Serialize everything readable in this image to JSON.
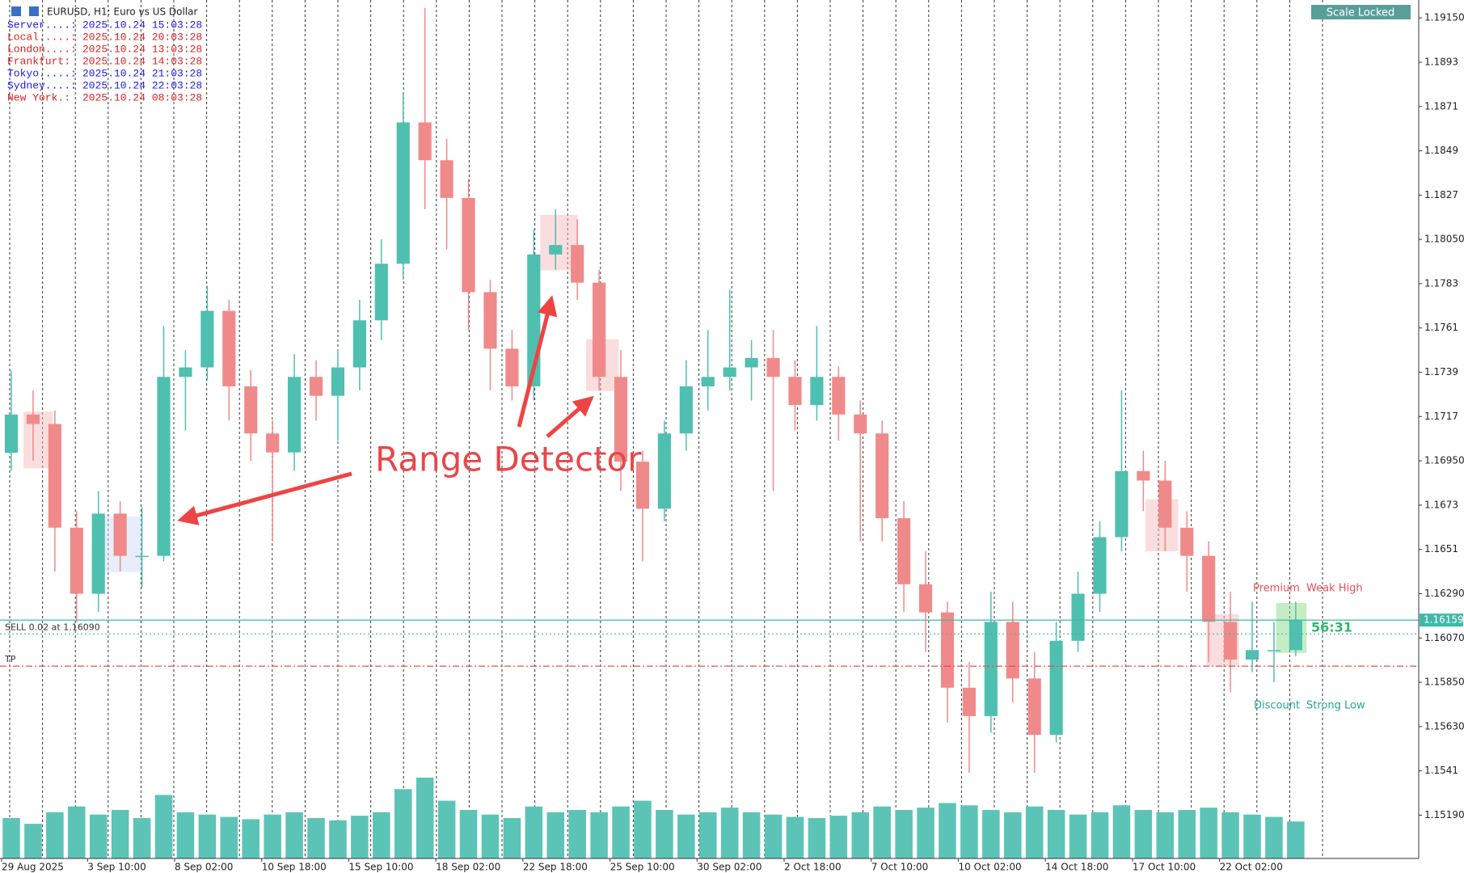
{
  "chart_data": {
    "type": "candlestick",
    "title": "EURUSD, H1: Euro vs US Dollar",
    "up_color": "#4fbfb0",
    "down_color": "#f08a8a",
    "open": [
      1.1699,
      1.1718,
      1.17133,
      1.16618,
      1.1629,
      1.16688,
      1.16478,
      1.16478,
      1.17367,
      1.17414,
      1.17695,
      1.1732,
      1.17086,
      1.16992,
      1.17367,
      1.17273,
      1.17414,
      1.17648,
      1.17929,
      1.18631,
      1.18443,
      1.18256,
      1.17788,
      1.17507,
      1.1732,
      1.17975,
      1.18022,
      1.17835,
      1.17367,
      1.16946,
      1.16712,
      1.17086,
      1.1732,
      1.17367,
      1.17414,
      1.17461,
      1.17367,
      1.17227,
      1.17367,
      1.1718,
      1.17086,
      1.16665,
      1.16337,
      1.16197,
      1.15823,
      1.15682,
      1.1615,
      1.15869,
      1.15589,
      1.16056,
      1.1629,
      1.16571,
      1.16899,
      1.16852,
      1.16618,
      1.16478,
      1.1615,
      1.15963,
      1.1601,
      1.1601
    ],
    "high": [
      1.174,
      1.173,
      1.172,
      1.167,
      1.168,
      1.1675,
      1.1672,
      1.1762,
      1.175,
      1.1782,
      1.1775,
      1.174,
      1.1715,
      1.1748,
      1.1745,
      1.175,
      1.1775,
      1.1805,
      1.1878,
      1.192,
      1.1855,
      1.1835,
      1.1785,
      1.176,
      1.181,
      1.182,
      1.1815,
      1.179,
      1.175,
      1.17,
      1.1715,
      1.1745,
      1.176,
      1.178,
      1.1755,
      1.176,
      1.1745,
      1.1762,
      1.1742,
      1.1725,
      1.1715,
      1.1675,
      1.165,
      1.1625,
      1.1595,
      1.163,
      1.1625,
      1.16,
      1.1615,
      1.164,
      1.1665,
      1.173,
      1.17,
      1.1695,
      1.167,
      1.1655,
      1.163,
      1.1625,
      1.1615,
      1.1625
    ],
    "low": [
      1.169,
      1.1695,
      1.164,
      1.1615,
      1.162,
      1.164,
      1.1632,
      1.1645,
      1.171,
      1.1735,
      1.1715,
      1.1695,
      1.1655,
      1.169,
      1.1715,
      1.1705,
      1.173,
      1.1755,
      1.1785,
      1.182,
      1.18,
      1.176,
      1.173,
      1.1725,
      1.1725,
      1.179,
      1.1775,
      1.173,
      1.168,
      1.1645,
      1.1665,
      1.17,
      1.172,
      1.173,
      1.1725,
      1.168,
      1.171,
      1.1715,
      1.1705,
      1.1655,
      1.1655,
      1.162,
      1.16,
      1.1565,
      1.154,
      1.156,
      1.1575,
      1.154,
      1.1555,
      1.16,
      1.162,
      1.165,
      1.167,
      1.165,
      1.163,
      1.1595,
      1.158,
      1.159,
      1.1585,
      1.1598
    ],
    "close": [
      1.1718,
      1.17133,
      1.16618,
      1.1629,
      1.16688,
      1.16478,
      1.16478,
      1.17367,
      1.17414,
      1.17695,
      1.1732,
      1.17086,
      1.16992,
      1.17367,
      1.17273,
      1.17414,
      1.17648,
      1.17929,
      1.18631,
      1.18443,
      1.18256,
      1.17788,
      1.17507,
      1.1732,
      1.17975,
      1.18022,
      1.17835,
      1.17367,
      1.16946,
      1.16712,
      1.17086,
      1.1732,
      1.17367,
      1.17414,
      1.17461,
      1.17367,
      1.17227,
      1.17367,
      1.1718,
      1.17086,
      1.16665,
      1.16337,
      1.16197,
      1.15823,
      1.15682,
      1.1615,
      1.15869,
      1.15589,
      1.16056,
      1.1629,
      1.16571,
      1.16899,
      1.16852,
      1.16618,
      1.16478,
      1.1615,
      1.15963,
      1.1601,
      1.1601,
      1.16159
    ],
    "volume": [
      35,
      30,
      40,
      45,
      38,
      42,
      35,
      55,
      40,
      38,
      36,
      34,
      38,
      40,
      35,
      33,
      37,
      40,
      60,
      70,
      50,
      42,
      38,
      35,
      45,
      40,
      42,
      40,
      45,
      50,
      42,
      38,
      40,
      44,
      40,
      38,
      36,
      35,
      37,
      40,
      45,
      42,
      44,
      48,
      46,
      42,
      40,
      45,
      42,
      38,
      40,
      46,
      42,
      40,
      42,
      44,
      40,
      38,
      36,
      32
    ],
    "volume_color": "#5cc4b6",
    "xlim": [
      -0.52,
      64.65
    ],
    "xticks": [
      {
        "value": -0.5,
        "label": "29 Aug 2025"
      },
      {
        "value": 3.5,
        "label": "3 Sep 10:00"
      },
      {
        "value": 7.5,
        "label": "8 Sep 02:00"
      },
      {
        "value": 11.5,
        "label": "10 Sep 18:00"
      },
      {
        "value": 15.5,
        "label": "15 Sep 10:00"
      },
      {
        "value": 19.5,
        "label": "18 Sep 02:00"
      },
      {
        "value": 23.5,
        "label": "22 Sep 18:00"
      },
      {
        "value": 27.5,
        "label": "25 Sep 10:00"
      },
      {
        "value": 31.5,
        "label": "30 Sep 02:00"
      },
      {
        "value": 35.5,
        "label": "2 Oct 18:00"
      },
      {
        "value": 39.5,
        "label": "7 Oct 10:00"
      },
      {
        "value": 43.5,
        "label": "10 Oct 02:00"
      },
      {
        "value": 47.5,
        "label": "14 Oct 18:00"
      },
      {
        "value": 51.5,
        "label": "17 Oct 10:00"
      },
      {
        "value": 55.5,
        "label": "22 Oct 02:00"
      }
    ],
    "ylim": [
      1.14975,
      1.19239
    ],
    "yticks": [
      {
        "value": 1.1915,
        "label": "1.19150"
      },
      1.1893,
      1.1871,
      1.1849,
      1.1827,
      {
        "value": 1.1805,
        "label": "1.18050"
      },
      1.1783,
      1.1761,
      1.1739,
      1.1717,
      {
        "value": 1.1695,
        "label": "1.16950"
      },
      1.1673,
      1.1651,
      {
        "value": 1.1629,
        "label": "1.16290"
      },
      {
        "value": 1.1607,
        "label": "1.16070"
      },
      {
        "value": 1.1585,
        "label": "1.15850"
      },
      {
        "value": 1.1563,
        "label": "1.15630"
      },
      1.1541,
      {
        "value": 1.1519,
        "label": "1.15190"
      }
    ],
    "ranges": [
      {
        "x": [
          0.56,
          1.9
        ],
        "y": [
          1.16913,
          1.17194
        ],
        "color": "#f4b3b6"
      },
      {
        "x": [
          4.3,
          6.0
        ],
        "y": [
          1.16398,
          1.16674
        ],
        "color": "#c9d8f6"
      },
      {
        "x": [
          24.3,
          26.0
        ],
        "y": [
          1.17896,
          1.18172
        ],
        "color": "#f4b3b6"
      },
      {
        "x": [
          26.4,
          27.9
        ],
        "y": [
          1.17297,
          1.17554
        ],
        "color": "#f4b3b6"
      },
      {
        "x": [
          52.1,
          53.6
        ],
        "y": [
          1.16501,
          1.16759
        ],
        "color": "#f4b3b6"
      },
      {
        "x": [
          54.9,
          56.4
        ],
        "y": [
          1.1593,
          1.16188
        ],
        "color": "#f4b3b6"
      },
      {
        "x": [
          58.1,
          59.5
        ],
        "y": [
          1.15996,
          1.16244
        ],
        "color": "#7dd87d"
      }
    ],
    "current_price": 1.16159,
    "current_color": "#3fb8a8",
    "orders": [
      {
        "label": "SELL 0.02 at 1.16090",
        "price": 1.1609,
        "color": "#3fb8a8"
      },
      {
        "label": "TP",
        "price": 1.1593,
        "color": "#e05050"
      }
    ],
    "clocks": [
      {
        "label": "Server....:",
        "time": "2025.10.24 15:03:28",
        "color": "#1a1aee"
      },
      {
        "label": "Local.....:",
        "time": "2025.10.24 20:03:28",
        "color": "#e02020"
      },
      {
        "label": "London....:",
        "time": "2025.10.24 13:03:28",
        "color": "#e02020"
      },
      {
        "label": "Frankfurt:",
        "time": "2025.10.24 14:03:28",
        "color": "#e02020"
      },
      {
        "label": "Tokyo.....:",
        "time": "2025.10.24 21:03:28",
        "color": "#1a1aee"
      },
      {
        "label": "Sydney....:",
        "time": "2025.10.24 22:03:28",
        "color": "#1a1aee"
      },
      {
        "label": "New York.:",
        "time": "2025.10.24 08:03:28",
        "color": "#e02020"
      }
    ],
    "annotations": {
      "premium": "Premium",
      "weak_high": "Weak High",
      "discount": "Discount",
      "strong_low": "Strong Low",
      "countdown": "56:31",
      "overlay": "Range Detector"
    },
    "button": "Scale Locked"
  }
}
